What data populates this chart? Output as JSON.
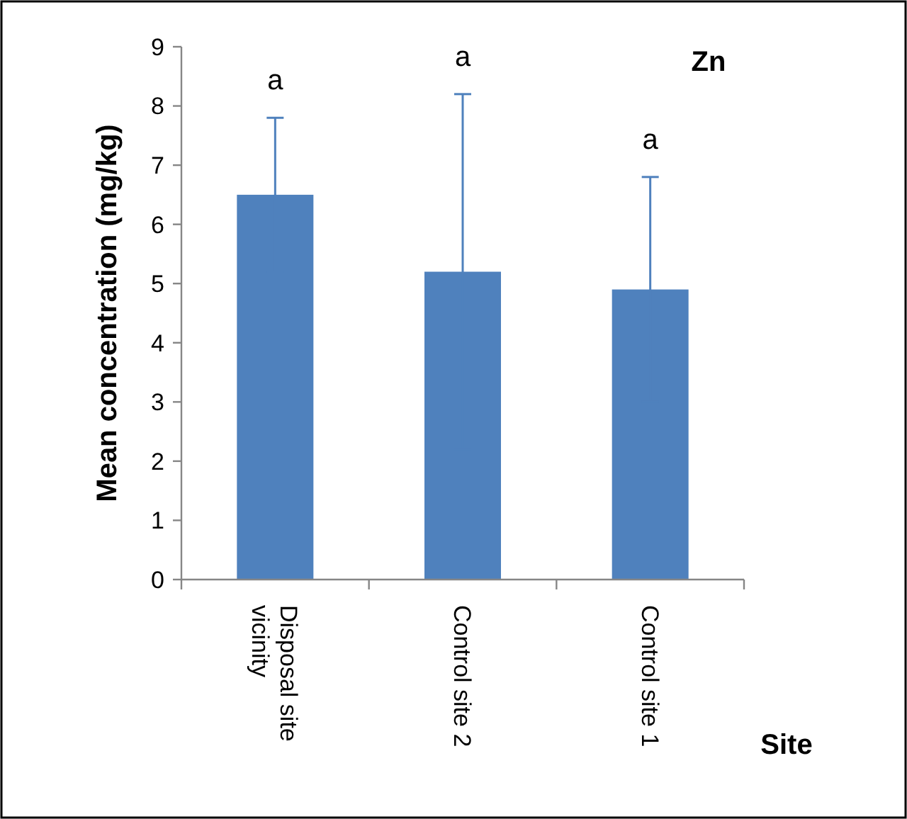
{
  "chart_data": {
    "type": "bar",
    "ylabel": "Mean concentration (mg/kg)",
    "xlabel": "Site",
    "categories": [
      "Disposal site vicinity",
      "Control site 2",
      "Control site 1"
    ],
    "values": [
      6.5,
      5.2,
      4.9
    ],
    "errors": [
      1.3,
      3.0,
      1.9
    ],
    "color": "#4f81bd",
    "ylim": [
      0,
      9
    ],
    "yticks": [
      0,
      1,
      2,
      3,
      4,
      5,
      6,
      7,
      8,
      9
    ],
    "grid": false,
    "annotations": [
      "Zn",
      "a",
      "a",
      "a"
    ]
  }
}
